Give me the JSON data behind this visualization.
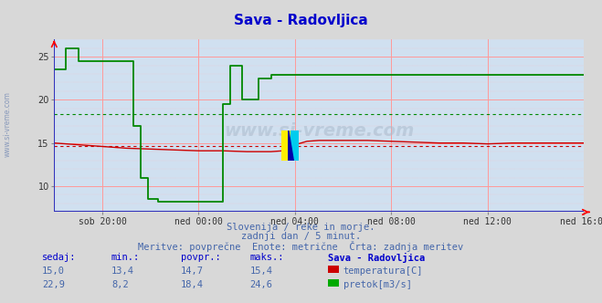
{
  "title": "Sava - Radovljica",
  "title_color": "#0000cc",
  "bg_color": "#d8d8d8",
  "plot_bg_color": "#d0e0f0",
  "grid_color": "#ff9999",
  "xlabel_ticks": [
    "sob 20:00",
    "ned 00:00",
    "ned 04:00",
    "ned 08:00",
    "ned 12:00",
    "ned 16:00"
  ],
  "ylim": [
    7,
    27
  ],
  "yticks": [
    10,
    15,
    20,
    25
  ],
  "temp_color": "#cc0000",
  "flow_color": "#008800",
  "avg_temp": 14.7,
  "avg_flow": 18.4,
  "footer_line1": "Slovenija / reke in morje.",
  "footer_line2": "zadnji dan / 5 minut.",
  "footer_line3": "Meritve: povprečne  Enote: metrične  Črta: zadnja meritev",
  "footer_color": "#4466aa",
  "table_headers": [
    "sedaj:",
    "min.:",
    "povpr.:",
    "maks.:",
    "Sava - Radovljica"
  ],
  "temp_vals": [
    "15,0",
    "13,4",
    "14,7",
    "15,4"
  ],
  "flow_vals": [
    "22,9",
    "8,2",
    "18,4",
    "24,6"
  ],
  "temp_label": "temperatura[C]",
  "flow_label": "pretok[m3/s]",
  "table_color": "#4466aa",
  "header_color": "#0000cc",
  "watermark": "www.si-vreme.com",
  "side_text": "www.si-vreme.com",
  "total_hours": 22.0,
  "tick_hours": [
    2,
    6,
    10,
    14,
    18,
    22
  ]
}
